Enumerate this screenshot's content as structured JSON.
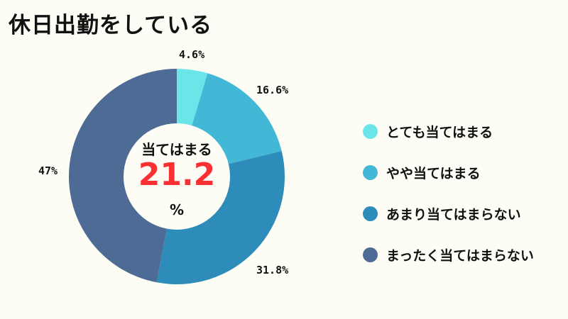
{
  "title": "休日出勤をしている",
  "center": {
    "label": "当てはまる",
    "value": "21.2",
    "unit": "%",
    "value_color": "#fa3033"
  },
  "chart_data": {
    "type": "pie",
    "donut": true,
    "title": "休日出勤をしている",
    "categories": [
      "とても当てはまる",
      "やや当てはまる",
      "あまり当てはまらない",
      "まったく当てはまらない"
    ],
    "values": [
      4.6,
      16.6,
      31.8,
      47
    ],
    "labels": [
      "4.6%",
      "16.6%",
      "31.8%",
      "47%"
    ],
    "colors": [
      "#6ce5e8",
      "#42b7d6",
      "#2e8cba",
      "#4e6b96"
    ],
    "legend_position": "right",
    "center_text": "当てはまる 21.2 %"
  },
  "legend": [
    {
      "label": "とても当てはまる",
      "color": "#6ce5e8"
    },
    {
      "label": "やや当てはまる",
      "color": "#42b7d6"
    },
    {
      "label": "あまり当てはまらない",
      "color": "#2e8cba"
    },
    {
      "label": "まったく当てはまらない",
      "color": "#4e6b96"
    }
  ],
  "slice_labels": [
    "4.6%",
    "16.6%",
    "31.8%",
    "47%"
  ]
}
